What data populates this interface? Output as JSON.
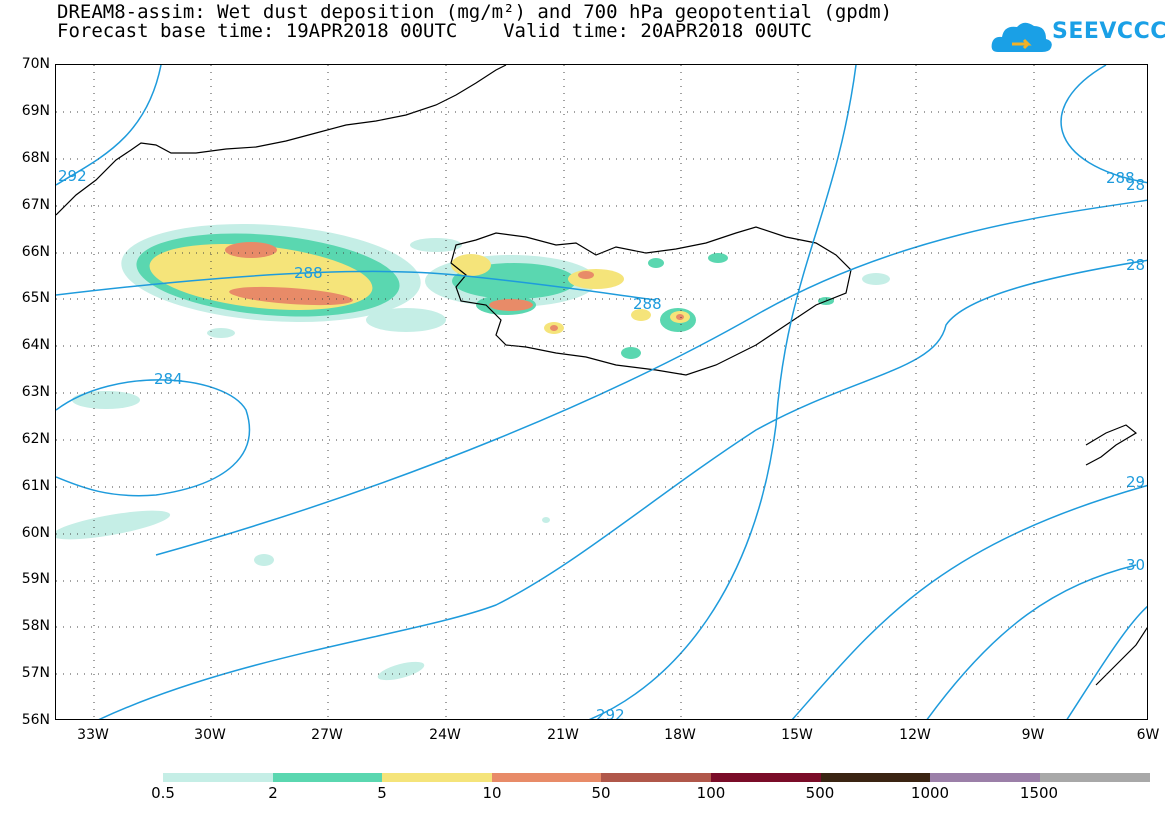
{
  "title_line1": "DREAM8-assim: Wet dust deposition (mg/m²) and 700 hPa geopotential (gpdm)",
  "title_line2": "Forecast base time: 19APR2018 00UTC    Valid time: 20APR2018 00UTC",
  "logo": {
    "text": "SEEVCCC",
    "icon": "cloud-icon",
    "color": "#1aa0e6"
  },
  "lat_labels": [
    "70N",
    "69N",
    "68N",
    "67N",
    "66N",
    "65N",
    "64N",
    "63N",
    "62N",
    "61N",
    "60N",
    "59N",
    "58N",
    "57N",
    "56N"
  ],
  "lon_labels": [
    "33W",
    "30W",
    "27W",
    "24W",
    "21W",
    "18W",
    "15W",
    "12W",
    "9W",
    "6W"
  ],
  "contour_labels": [
    "292",
    "288",
    "288",
    "284",
    "292",
    "288",
    "28",
    "28",
    "29",
    "30"
  ],
  "contour_color": "#1e9bdc",
  "legend": {
    "labels": [
      "0.5",
      "2",
      "5",
      "10",
      "50",
      "100",
      "500",
      "1000",
      "1500"
    ],
    "colors": [
      "#c5eee6",
      "#5ad7b0",
      "#f5e47a",
      "#e88b68",
      "#b0574a",
      "#7a0c28",
      "#3a2412",
      "#9b7fa8",
      "#a8a8a8"
    ]
  }
}
